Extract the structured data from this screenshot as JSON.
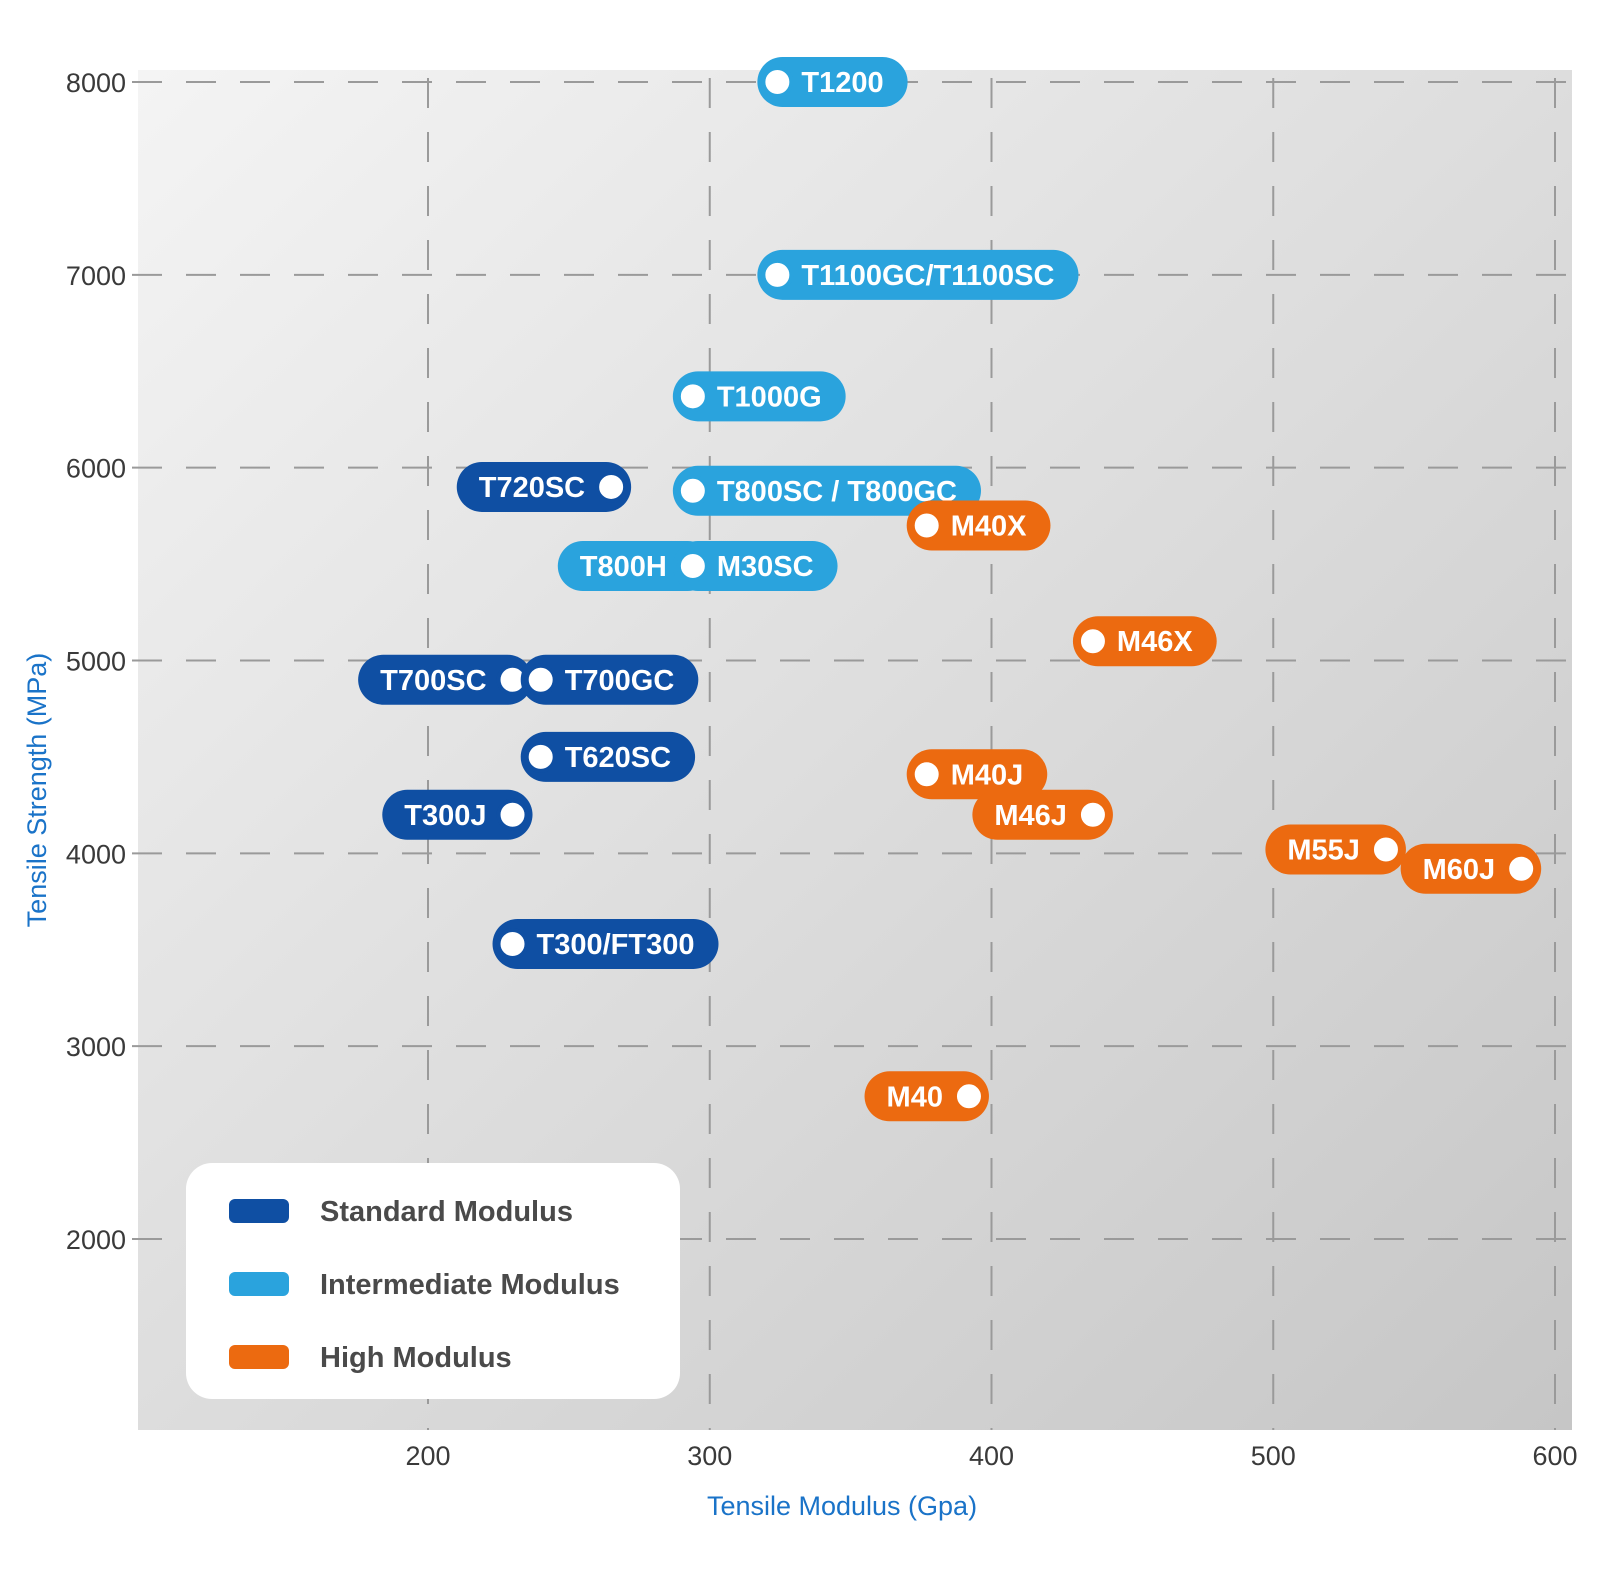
{
  "colors": {
    "standard": "#0f4fa3",
    "intermediate": "#2aa3dd",
    "high": "#ec6a10",
    "plot_bg_light": "#f2f2f2",
    "plot_bg_dark": "#c9c9c9",
    "grid": "#9a9a9a",
    "axis_title": "#1a73c8"
  },
  "chart_data": {
    "type": "scatter",
    "xlabel": "Tensile Modulus (Gpa)",
    "ylabel": "Tensile Strength (MPa)",
    "xlim": [
      100,
      600
    ],
    "ylim": [
      1000,
      8300
    ],
    "x_ticks": [
      200,
      300,
      400,
      500,
      600
    ],
    "y_ticks": [
      2000,
      3000,
      4000,
      5000,
      6000,
      7000,
      8000
    ],
    "grid": "dashed",
    "legend_position": "bottom-left",
    "series": [
      {
        "name": "Standard Modulus",
        "key": "standard",
        "points": [
          {
            "label": "T720SC",
            "x": 265,
            "y": 5900,
            "label_side": "left"
          },
          {
            "label": "T700SC",
            "x": 230,
            "y": 4900,
            "label_side": "left"
          },
          {
            "label": "T700GC",
            "x": 240,
            "y": 4900,
            "label_side": "right"
          },
          {
            "label": "T620SC",
            "x": 240,
            "y": 4500,
            "label_side": "right"
          },
          {
            "label": "T300J",
            "x": 230,
            "y": 4200,
            "label_side": "left"
          },
          {
            "label": "T300/FT300",
            "x": 230,
            "y": 3530,
            "label_side": "right"
          }
        ]
      },
      {
        "name": "Intermediate Modulus",
        "key": "intermediate",
        "points": [
          {
            "label": "T1200",
            "x": 324,
            "y": 8000,
            "label_side": "right"
          },
          {
            "label": "T1100GC/T1100SC",
            "x": 324,
            "y": 7000,
            "label_side": "right"
          },
          {
            "label": "T1000G",
            "x": 294,
            "y": 6370,
            "label_side": "right"
          },
          {
            "label": "T800SC / T800GC",
            "x": 294,
            "y": 5880,
            "label_side": "right"
          },
          {
            "label": "T800H",
            "x": 294,
            "y": 5490,
            "label_side": "left"
          },
          {
            "label": "M30SC",
            "x": 294,
            "y": 5490,
            "label_side": "right"
          }
        ]
      },
      {
        "name": "High Modulus",
        "key": "high",
        "points": [
          {
            "label": "M40X",
            "x": 377,
            "y": 5700,
            "label_side": "right"
          },
          {
            "label": "M46X",
            "x": 436,
            "y": 5100,
            "label_side": "right"
          },
          {
            "label": "M40J",
            "x": 377,
            "y": 4410,
            "label_side": "right"
          },
          {
            "label": "M46J",
            "x": 436,
            "y": 4200,
            "label_side": "left"
          },
          {
            "label": "M55J",
            "x": 540,
            "y": 4020,
            "label_side": "left"
          },
          {
            "label": "M60J",
            "x": 588,
            "y": 3920,
            "label_side": "left"
          },
          {
            "label": "M40",
            "x": 392,
            "y": 2740,
            "label_side": "left"
          }
        ]
      }
    ]
  }
}
